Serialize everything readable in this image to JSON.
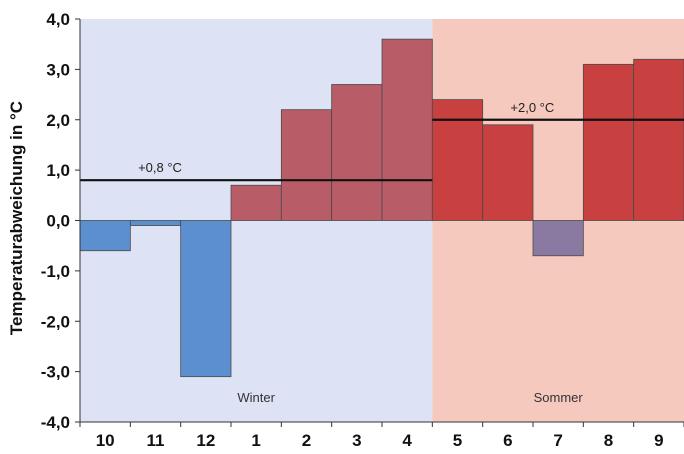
{
  "chart_data": {
    "type": "bar",
    "categories": [
      "10",
      "11",
      "12",
      "1",
      "2",
      "3",
      "4",
      "5",
      "6",
      "7",
      "8",
      "9"
    ],
    "values": [
      -0.6,
      -0.1,
      -3.1,
      0.7,
      2.2,
      2.7,
      3.6,
      2.4,
      1.9,
      -0.7,
      3.1,
      3.2
    ],
    "bar_colors": [
      "#5b8fd0",
      "#5b8fd0",
      "#5b8fd0",
      "#b85c68",
      "#b85c68",
      "#b85c68",
      "#b85c68",
      "#c8403f",
      "#c8403f",
      "#8a7aa2",
      "#c8403f",
      "#c8403f"
    ],
    "ylabel": "Temperaturabweichung in °C",
    "xlabel": "",
    "ylim": [
      -4.0,
      4.0
    ],
    "yticks": [
      "4,0",
      "3,0",
      "2,0",
      "1,0",
      "0,0",
      "-1,0",
      "-2,0",
      "-3,0",
      "-4,0"
    ],
    "seasons": [
      {
        "label": "Winter",
        "from_index": 0,
        "to_index": 6,
        "color": "#dde3f4"
      },
      {
        "label": "Sommer",
        "from_index": 7,
        "to_index": 11,
        "color": "#f5c9bd"
      }
    ],
    "mean_lines": [
      {
        "label": "+0,8 °C",
        "value": 0.8,
        "from_index": 0,
        "to_index": 6
      },
      {
        "label": "+2,0 °C",
        "value": 2.0,
        "from_index": 7,
        "to_index": 11
      }
    ]
  }
}
